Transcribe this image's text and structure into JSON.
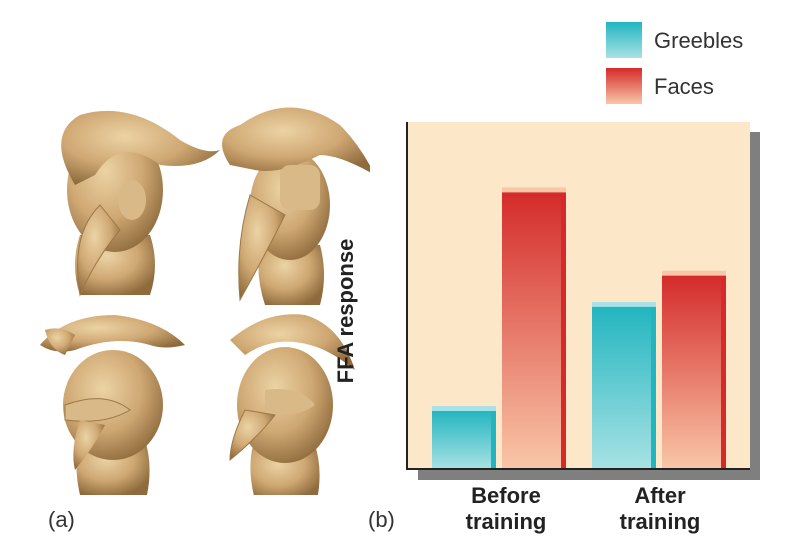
{
  "panel_a": {
    "label": "(a)",
    "figures": [
      "greeble",
      "greeble",
      "greeble",
      "greeble"
    ]
  },
  "panel_b": {
    "label": "(b)"
  },
  "chart_data": {
    "type": "bar",
    "title": "",
    "xlabel": "",
    "ylabel": "FFA response",
    "categories": [
      {
        "line1": "Before",
        "line2": "training"
      },
      {
        "line1": "After",
        "line2": "training"
      }
    ],
    "series": [
      {
        "name": "Greebles",
        "values": [
          0.17,
          0.47
        ]
      },
      {
        "name": "Faces",
        "values": [
          0.8,
          0.56
        ]
      }
    ],
    "ylim": [
      0,
      1
    ],
    "grid": false,
    "legend_position": "top-right",
    "colors": {
      "background": "#fce8c8",
      "greebles_top": "#22b5c0",
      "greebles_bottom": "#a8e2e4",
      "faces_top": "#d42a2a",
      "faces_bottom": "#f9c7a8",
      "shadow": "#7f7f7f"
    }
  }
}
